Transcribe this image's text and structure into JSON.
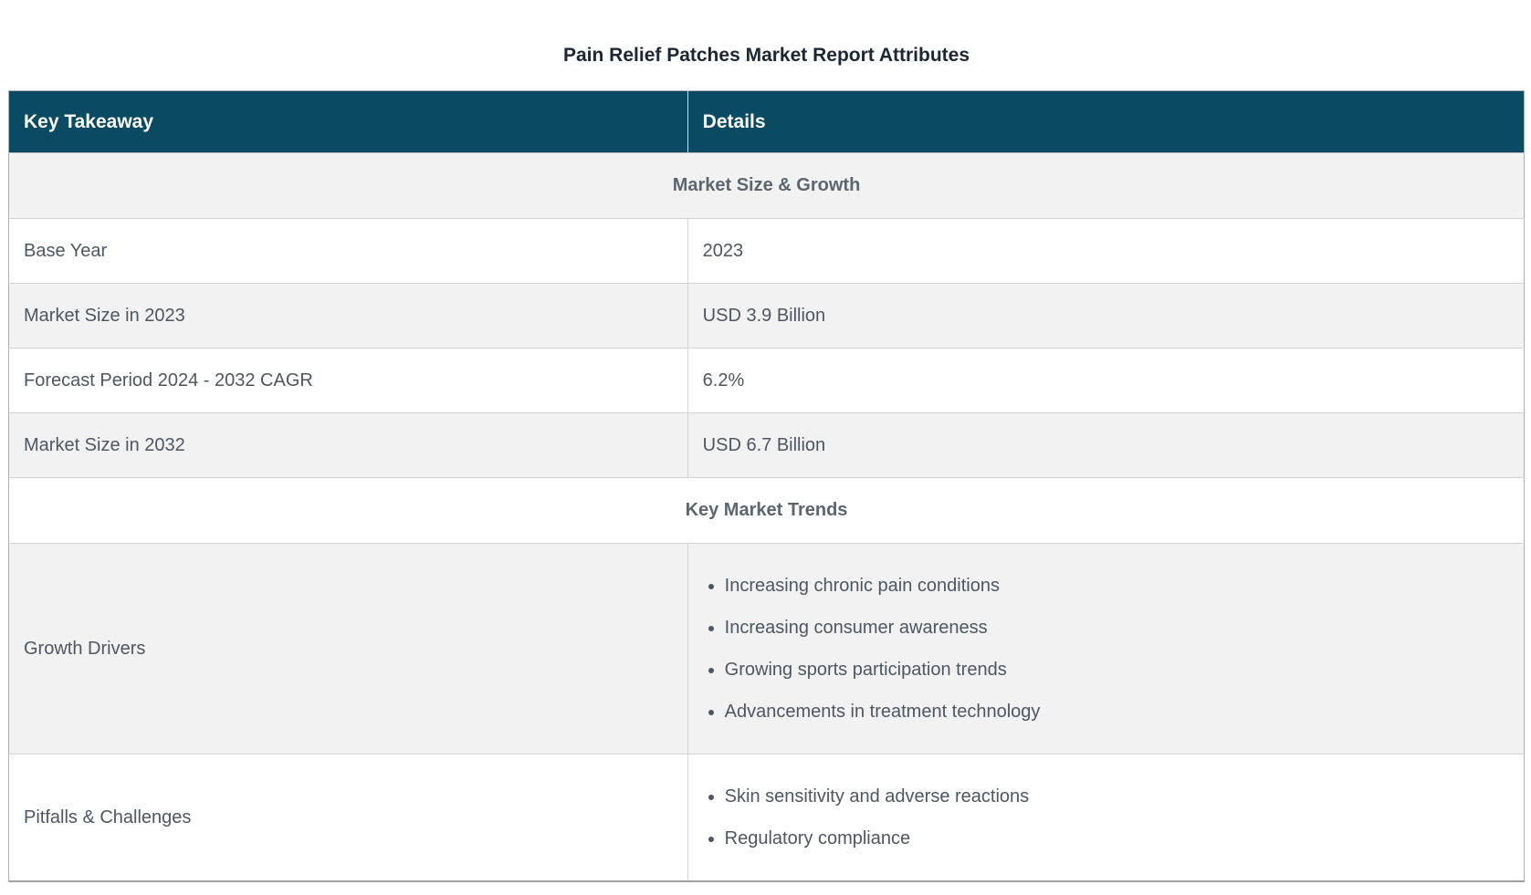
{
  "title": "Pain Relief Patches Market Report Attributes",
  "table": {
    "header": {
      "key_col": "Key Takeaway",
      "details_col": "Details"
    },
    "rows": [
      {
        "type": "section",
        "label": "Market Size & Growth"
      },
      {
        "type": "kv",
        "key": "Base Year",
        "value": "2023"
      },
      {
        "type": "kv",
        "key": "Market Size in 2023",
        "value": "USD 3.9 Billion"
      },
      {
        "type": "kv",
        "key": "Forecast Period 2024 - 2032 CAGR",
        "value": "6.2%"
      },
      {
        "type": "kv",
        "key": "Market Size in 2032",
        "value": "USD 6.7 Billion"
      },
      {
        "type": "section",
        "label": "Key Market Trends"
      },
      {
        "type": "list",
        "key": "Growth Drivers",
        "items": [
          "Increasing chronic pain conditions",
          "Increasing consumer awareness",
          "Growing sports participation trends",
          "Advancements in treatment technology"
        ]
      },
      {
        "type": "list",
        "key": "Pitfalls & Challenges",
        "items": [
          "Skin sensitivity and adverse reactions",
          "Regulatory compliance"
        ]
      }
    ]
  },
  "colors": {
    "header_bg": "#0a4a63",
    "header_text": "#ffffff",
    "stripe_bg": "#f2f2f2",
    "row_bg": "#ffffff",
    "body_text": "#4d5761",
    "section_text": "#5c666f",
    "title_text": "#1b2732",
    "outer_border": "#afafaf",
    "inner_border": "#d2d2d2"
  }
}
